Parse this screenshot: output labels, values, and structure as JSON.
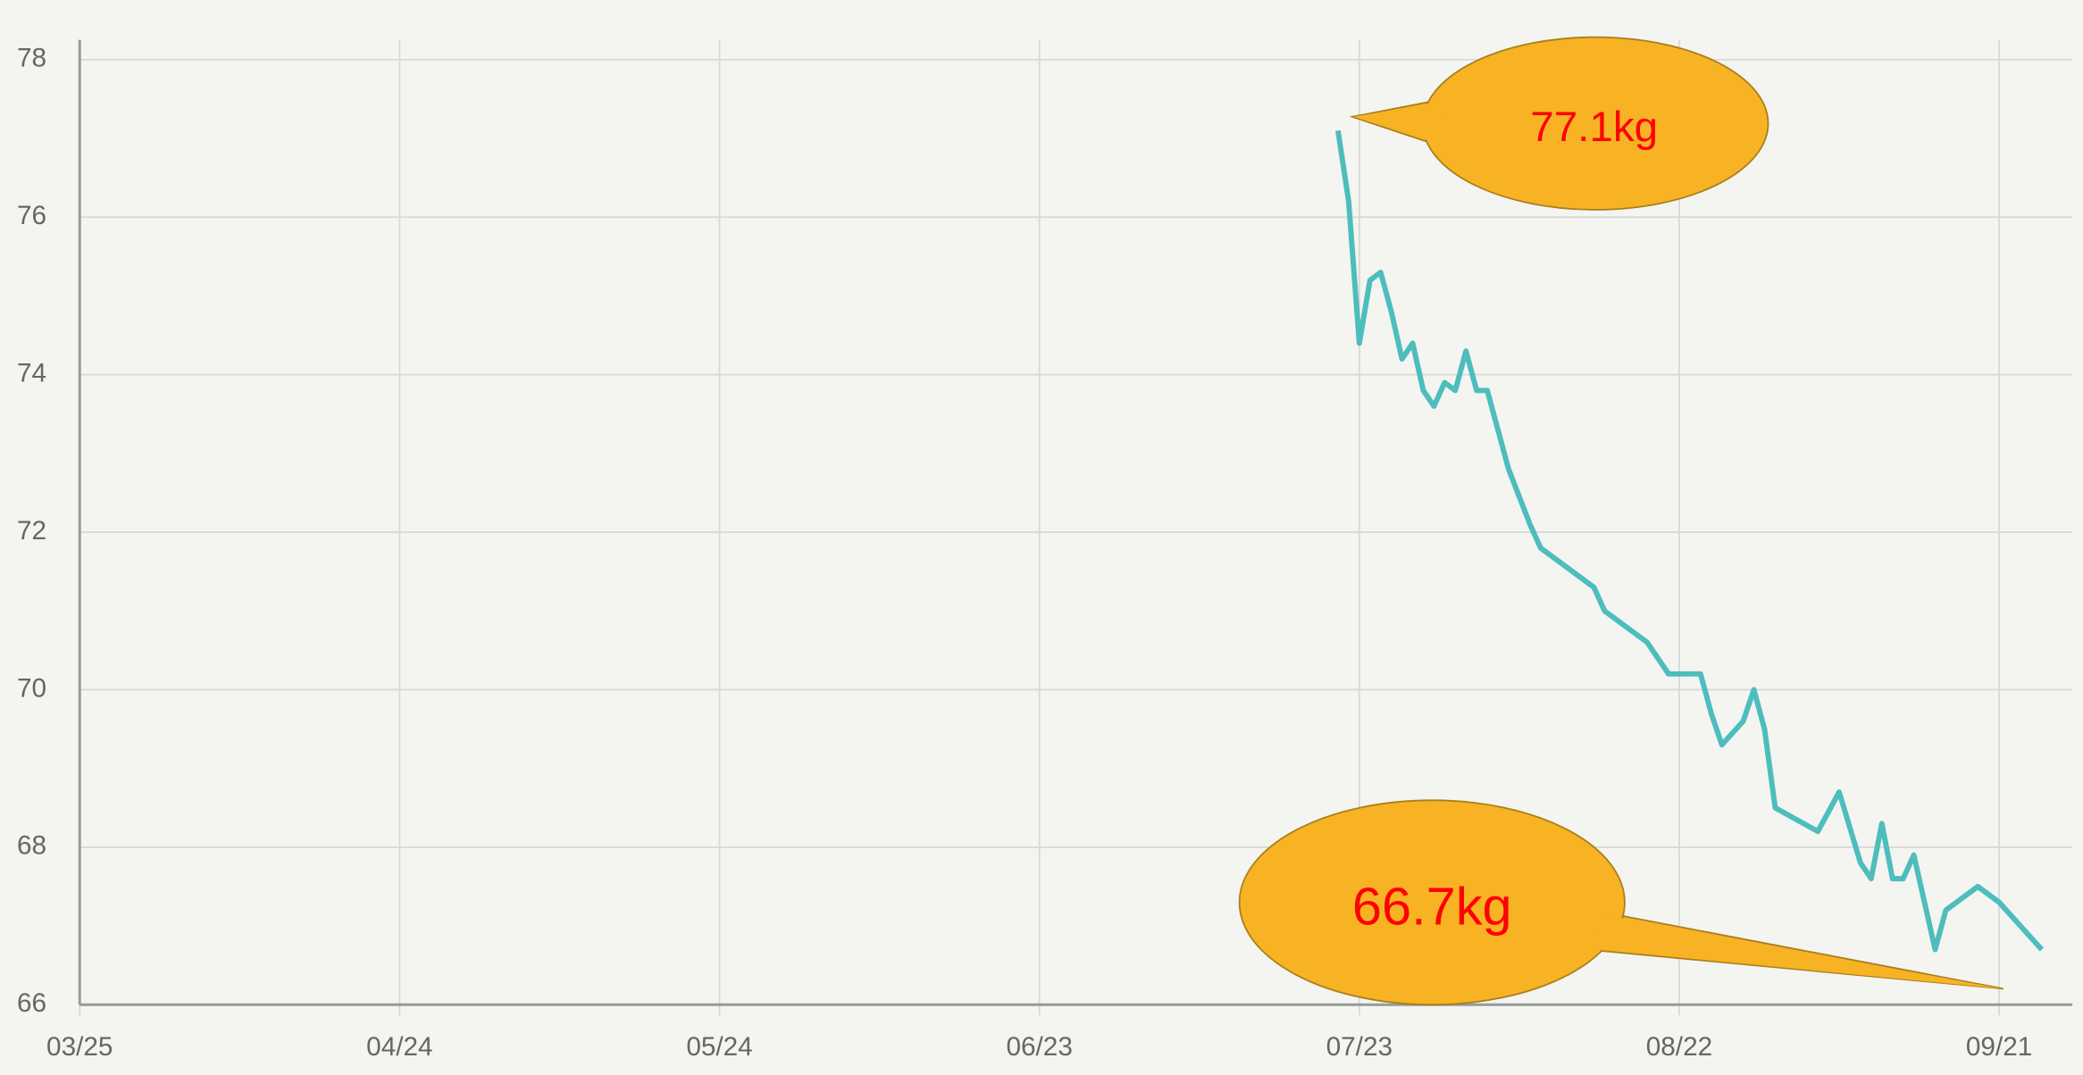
{
  "chart_data": {
    "type": "line",
    "x": [
      "07/21",
      "07/22",
      "07/23",
      "07/24",
      "07/25",
      "07/26",
      "07/27",
      "07/28",
      "07/29",
      "07/30",
      "07/31",
      "08/01",
      "08/02",
      "08/03",
      "08/04",
      "08/06",
      "08/08",
      "08/09",
      "08/13",
      "08/14",
      "08/15",
      "08/19",
      "08/21",
      "08/24",
      "08/25",
      "08/26",
      "08/28",
      "08/29",
      "08/30",
      "08/31",
      "09/04",
      "09/06",
      "09/08",
      "09/09",
      "09/10",
      "09/11",
      "09/12",
      "09/13",
      "09/15",
      "09/16",
      "09/19",
      "09/21",
      "09/25"
    ],
    "series": [
      {
        "color": "#4dbdbd",
        "values": [
          77.1,
          76.2,
          74.4,
          75.2,
          75.3,
          74.8,
          74.2,
          74.4,
          73.8,
          73.6,
          73.9,
          73.8,
          74.3,
          73.8,
          73.8,
          72.8,
          72.1,
          71.8,
          71.4,
          71.3,
          71.0,
          70.6,
          70.2,
          70.2,
          69.7,
          69.3,
          69.6,
          70.0,
          69.5,
          68.5,
          68.2,
          68.7,
          67.8,
          67.6,
          68.3,
          67.6,
          67.6,
          67.9,
          66.7,
          67.2,
          67.5,
          67.3,
          66.7
        ]
      }
    ],
    "xlim": [
      "03/25",
      "09/26"
    ],
    "xticks": [
      "03/25",
      "04/24",
      "05/24",
      "06/23",
      "07/23",
      "08/22",
      "09/21"
    ],
    "ylim": [
      66,
      78
    ],
    "yticks": [
      66,
      68,
      70,
      72,
      74,
      76,
      78
    ],
    "grid": true,
    "annotations": [
      {
        "text": "77.1kg",
        "color": "#ff0000"
      },
      {
        "text": "66.7kg",
        "color": "#ff0000"
      }
    ]
  }
}
